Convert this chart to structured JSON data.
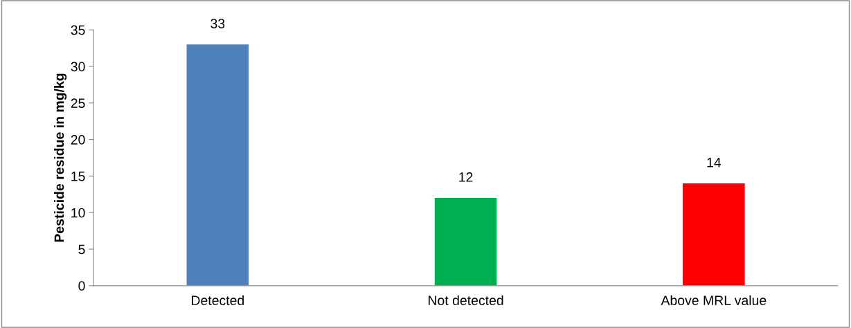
{
  "chart_data": {
    "type": "bar",
    "ylabel": "Pesticide residue in mg/kg",
    "categories": [
      "Detected",
      "Not detected",
      "Above MRL value"
    ],
    "values": [
      33,
      12,
      14
    ],
    "colors": [
      "#4f81bd",
      "#00b050",
      "#ff0000"
    ],
    "ylim": [
      0,
      35
    ],
    "yticks": [
      0,
      5,
      10,
      15,
      20,
      25,
      30,
      35
    ],
    "data_labels": true,
    "grid": false,
    "legend": false
  }
}
